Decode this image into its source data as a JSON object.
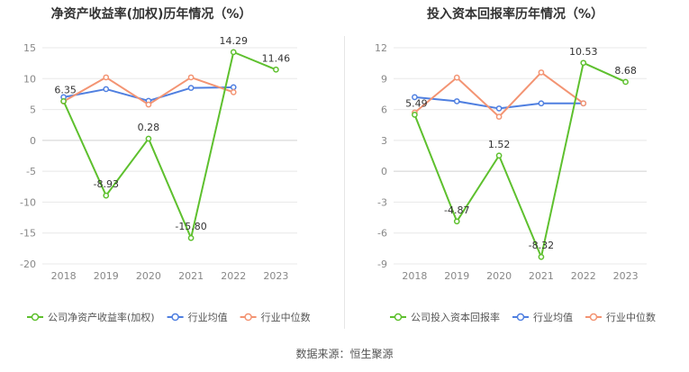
{
  "colors": {
    "company": "#5ec02e",
    "industry_avg": "#4f7fe0",
    "industry_median": "#f39473",
    "grid": "#e8e8e8",
    "tick": "#888888",
    "label": "#333333",
    "title": "#333333"
  },
  "source_text": "数据来源：恒生聚源",
  "chart_data": [
    {
      "type": "line",
      "title": "净资产收益率(加权)历年情况（%）",
      "categories": [
        "2018",
        "2019",
        "2020",
        "2021",
        "2022",
        "2023"
      ],
      "ylim": [
        -20,
        15
      ],
      "yticks": [
        15,
        10,
        5,
        0,
        -5,
        -10,
        -15,
        -20
      ],
      "ytick_labels": [
        "15",
        "10",
        "5",
        "0",
        "-5",
        "-10",
        "-15",
        "-20"
      ],
      "series": [
        {
          "name": "公司净资产收益率(加权)",
          "key": "company",
          "values": [
            6.35,
            -8.93,
            0.28,
            -15.8,
            14.29,
            11.46
          ],
          "labels": [
            "6.35",
            "-8.93",
            "0.28",
            "-15.80",
            "14.29",
            "11.46"
          ]
        },
        {
          "name": "行业均值",
          "key": "industry_avg",
          "values": [
            7.0,
            8.3,
            6.4,
            8.5,
            8.6,
            null
          ]
        },
        {
          "name": "行业中位数",
          "key": "industry_median",
          "values": [
            6.3,
            10.2,
            5.8,
            10.2,
            7.8,
            null
          ]
        }
      ]
    },
    {
      "type": "line",
      "title": "投入资本回报率历年情况（%）",
      "categories": [
        "2018",
        "2019",
        "2020",
        "2021",
        "2022",
        "2023"
      ],
      "ylim": [
        -9,
        12
      ],
      "yticks": [
        12,
        9,
        6,
        3,
        0,
        -3,
        -6,
        -9
      ],
      "ytick_labels": [
        "12",
        "9",
        "6",
        "3",
        "0",
        "-3",
        "-6",
        "-9"
      ],
      "series": [
        {
          "name": "公司投入资本回报率",
          "key": "company",
          "values": [
            5.49,
            -4.87,
            1.52,
            -8.32,
            10.53,
            8.68
          ],
          "labels": [
            "5.49",
            "-4.87",
            "1.52",
            "-8.32",
            "10.53",
            "8.68"
          ]
        },
        {
          "name": "行业均值",
          "key": "industry_avg",
          "values": [
            7.2,
            6.8,
            6.1,
            6.6,
            6.6,
            null
          ]
        },
        {
          "name": "行业中位数",
          "key": "industry_median",
          "values": [
            5.7,
            9.1,
            5.3,
            9.6,
            6.6,
            null
          ]
        }
      ]
    }
  ]
}
